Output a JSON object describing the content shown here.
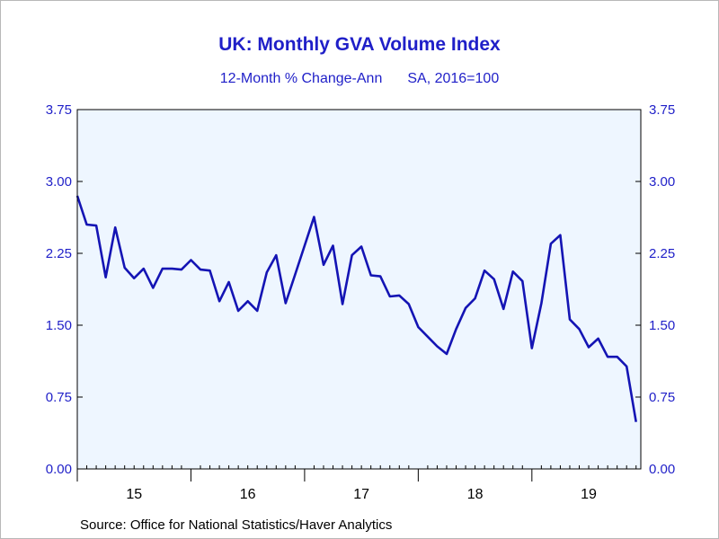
{
  "chart_data": {
    "type": "line",
    "title": "UK: Monthly GVA Volume Index",
    "subtitle_left": "12-Month % Change-Ann",
    "subtitle_right": "SA, 2016=100",
    "source": "Source:  Office for National Statistics/Haver Analytics",
    "ylim": [
      0,
      3.75
    ],
    "yticks": [
      "0.00",
      "0.75",
      "1.50",
      "2.25",
      "3.00",
      "3.75"
    ],
    "x_tick_labels": [
      "15",
      "16",
      "17",
      "18",
      "19"
    ],
    "grid": false,
    "colors": {
      "line": "#1414b4",
      "plot_bg": "#eef6ff",
      "text": "#1f1fc8"
    },
    "series": [
      {
        "x": [
          "2015-01",
          "2015-02",
          "2015-03",
          "2015-04",
          "2015-05",
          "2015-06",
          "2015-07",
          "2015-08",
          "2015-09",
          "2015-10",
          "2015-11",
          "2015-12",
          "2016-01",
          "2016-02",
          "2016-03",
          "2016-04",
          "2016-05",
          "2016-06",
          "2016-07",
          "2016-08",
          "2016-09",
          "2016-10",
          "2016-11",
          "2016-12",
          "2017-01",
          "2017-02",
          "2017-03",
          "2017-04",
          "2017-05",
          "2017-06",
          "2017-07",
          "2017-08",
          "2017-09",
          "2017-10",
          "2017-11",
          "2017-12",
          "2018-01",
          "2018-02",
          "2018-03",
          "2018-04",
          "2018-05",
          "2018-06",
          "2018-07",
          "2018-08",
          "2018-09",
          "2018-10",
          "2018-11",
          "2018-12",
          "2019-01",
          "2019-02",
          "2019-03",
          "2019-04",
          "2019-05",
          "2019-06",
          "2019-07",
          "2019-08",
          "2019-09",
          "2019-10",
          "2019-11",
          "2019-12"
        ],
        "values": [
          2.85,
          2.55,
          2.54,
          2.0,
          2.52,
          2.1,
          1.99,
          2.09,
          1.89,
          2.09,
          2.09,
          2.08,
          2.18,
          2.08,
          2.07,
          1.75,
          1.95,
          1.65,
          1.75,
          1.65,
          2.05,
          2.23,
          1.73,
          2.03,
          2.33,
          2.63,
          2.13,
          2.33,
          1.72,
          2.23,
          2.32,
          2.02,
          2.01,
          1.8,
          1.81,
          1.72,
          1.48,
          1.38,
          1.28,
          1.2,
          1.46,
          1.68,
          1.78,
          2.07,
          1.98,
          1.67,
          2.06,
          1.96,
          1.26,
          1.73,
          2.35,
          2.44,
          1.56,
          1.46,
          1.27,
          1.36,
          1.17,
          1.17,
          1.07,
          0.49
        ]
      }
    ]
  }
}
